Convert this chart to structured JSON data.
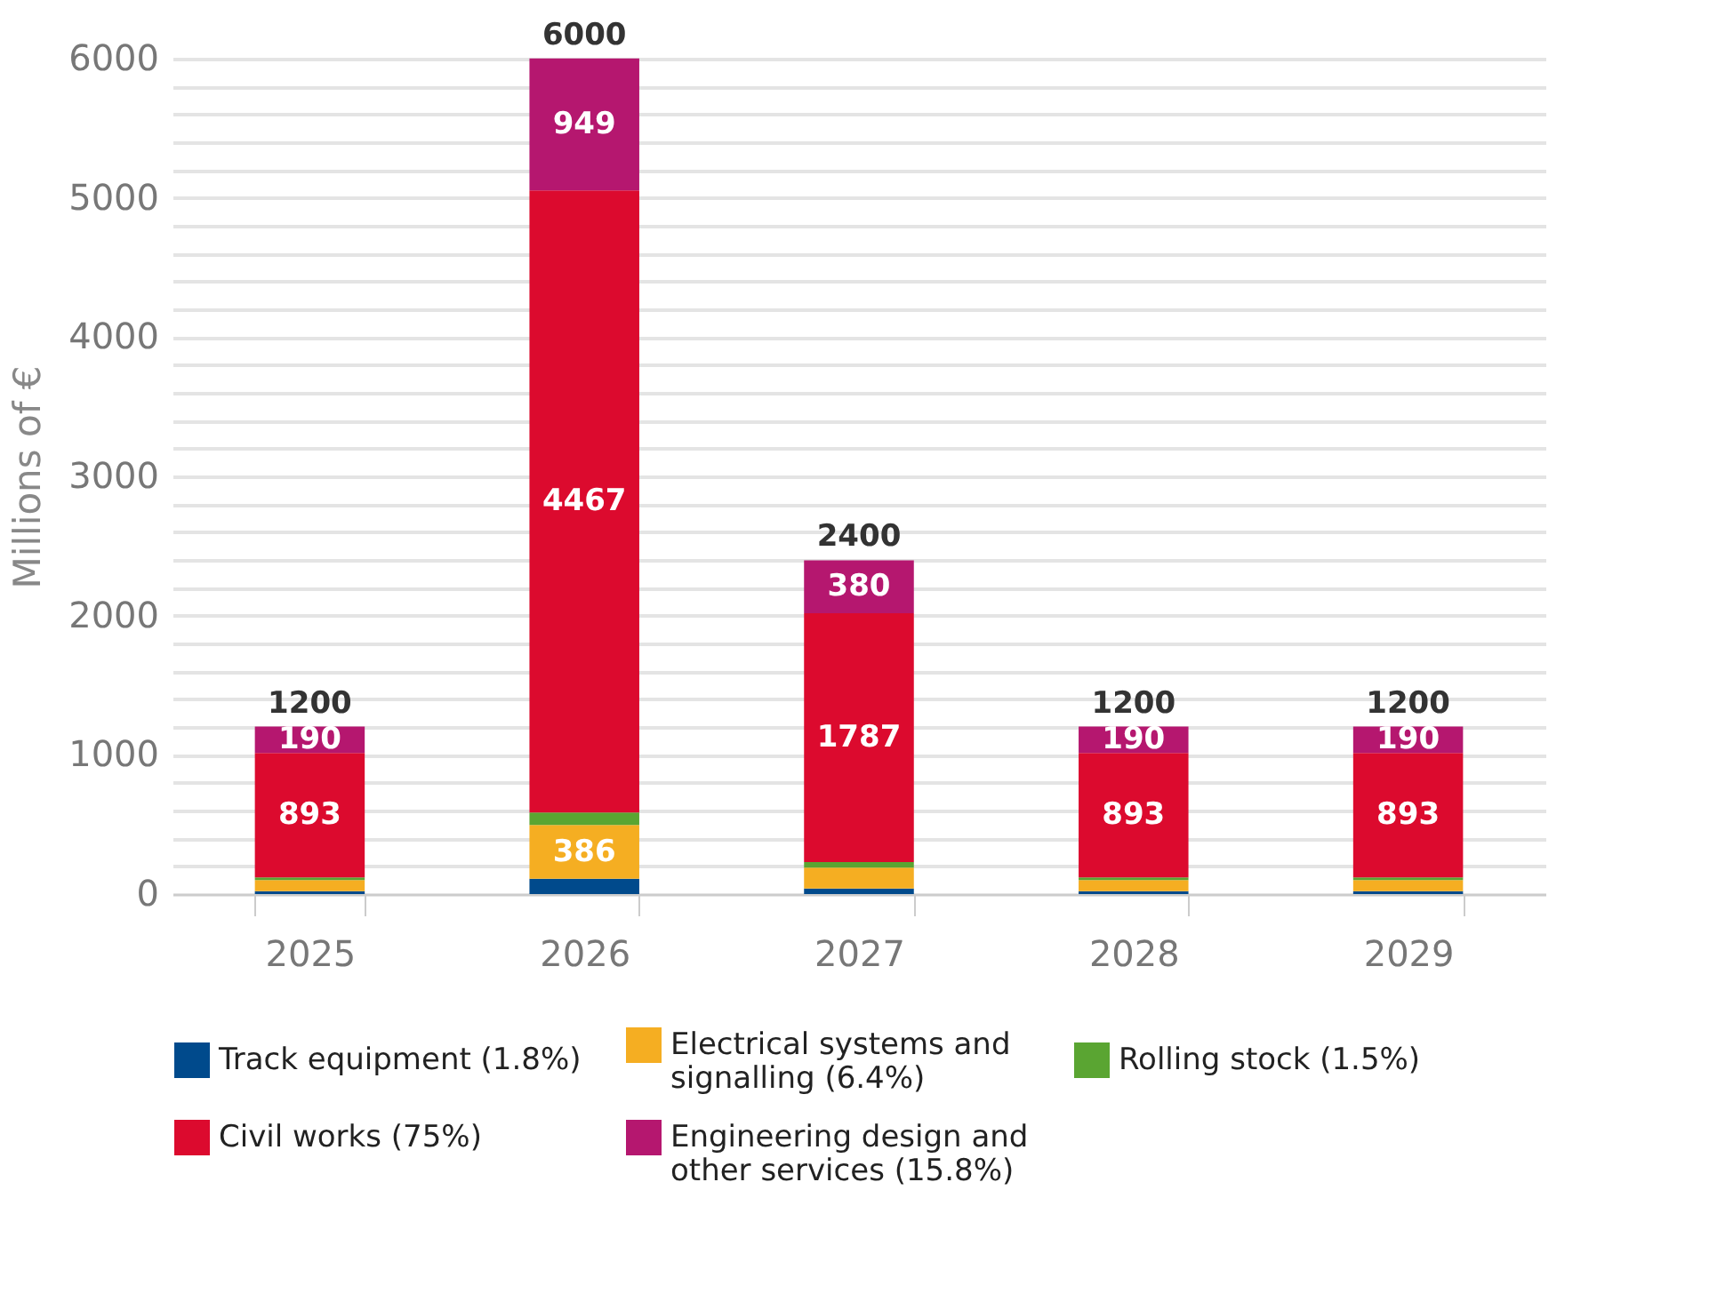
{
  "chart_data": {
    "type": "bar",
    "stacked": true,
    "ylabel": "Millions of €",
    "categories": [
      "2025",
      "2026",
      "2027",
      "2028",
      "2029"
    ],
    "series": [
      {
        "name": "Track equipment (1.8%)",
        "color": "#004a8c",
        "values": [
          20,
          110,
          40,
          20,
          20
        ]
      },
      {
        "name": "Electrical systems and signalling (6.4%)",
        "color": "#f5ae22",
        "values": [
          80,
          386,
          150,
          80,
          80
        ],
        "value_labels": [
          null,
          "386",
          null,
          null,
          null
        ]
      },
      {
        "name": "Rolling stock (1.5%)",
        "color": "#5aa532",
        "values": [
          20,
          90,
          40,
          20,
          20
        ]
      },
      {
        "name": "Civil works (75%)",
        "color": "#dc0a2e",
        "values": [
          893,
          4467,
          1787,
          893,
          893
        ],
        "value_labels": [
          "893",
          "4467",
          "1787",
          "893",
          "893"
        ]
      },
      {
        "name": "Engineering design and other services (15.8%)",
        "color": "#b5176f",
        "values": [
          190,
          949,
          380,
          190,
          190
        ],
        "value_labels": [
          "190",
          "949",
          "380",
          "190",
          "190"
        ]
      }
    ],
    "totals": [
      "1200",
      "6000",
      "2400",
      "1200",
      "1200"
    ],
    "ylim": [
      0,
      6000
    ],
    "yticks": [
      0,
      {
        "value": 200,
        "label": null
      },
      {
        "value": 400,
        "label": null
      },
      {
        "value": 600,
        "label": null
      },
      {
        "value": 800,
        "label": null
      },
      1000,
      {
        "value": 1200,
        "label": null
      },
      {
        "value": 1400,
        "label": null
      },
      {
        "value": 1600,
        "label": null
      },
      {
        "value": 1800,
        "label": null
      },
      2000,
      {
        "value": 2200,
        "label": null
      },
      {
        "value": 2400,
        "label": null
      },
      {
        "value": 2600,
        "label": null
      },
      {
        "value": 2800,
        "label": null
      },
      3000,
      {
        "value": 3200,
        "label": null
      },
      {
        "value": 3400,
        "label": null
      },
      {
        "value": 3600,
        "label": null
      },
      {
        "value": 3800,
        "label": null
      },
      4000,
      {
        "value": 4200,
        "label": null
      },
      {
        "value": 4400,
        "label": null
      },
      {
        "value": 4600,
        "label": null
      },
      {
        "value": 4800,
        "label": null
      },
      5000,
      {
        "value": 5200,
        "label": null
      },
      {
        "value": 5400,
        "label": null
      },
      {
        "value": 5600,
        "label": null
      },
      {
        "value": 5800,
        "label": null
      },
      6000
    ],
    "grid": true,
    "legend": "bottom"
  }
}
